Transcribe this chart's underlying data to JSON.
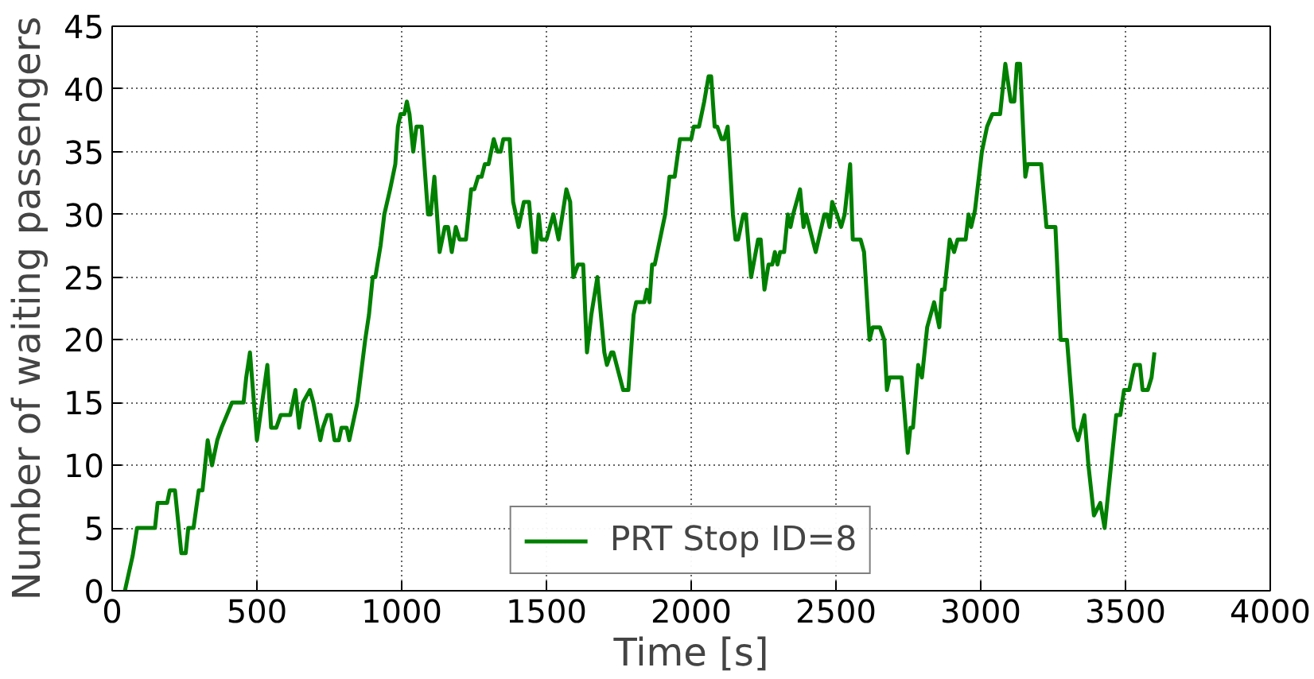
{
  "chart_data": {
    "type": "line",
    "xlabel": "Time [s]",
    "ylabel": "Number of waiting passengers",
    "xlim": [
      0,
      4000
    ],
    "ylim": [
      0,
      45
    ],
    "xticks": [
      0,
      500,
      1000,
      1500,
      2000,
      2500,
      3000,
      3500,
      4000
    ],
    "yticks": [
      0,
      5,
      10,
      15,
      20,
      25,
      30,
      35,
      40,
      45
    ],
    "grid": true,
    "legend": "bottom",
    "line_style": "solid",
    "marker": "none",
    "series": [
      {
        "name": "PRT Stop ID=8",
        "color": "#008000",
        "x": [
          44,
          71,
          86,
          148,
          157,
          190,
          199,
          217,
          239,
          254,
          263,
          281,
          299,
          312,
          330,
          345,
          363,
          378,
          396,
          414,
          454,
          463,
          476,
          500,
          518,
          536,
          549,
          567,
          582,
          615,
          633,
          646,
          659,
          683,
          695,
          719,
          728,
          743,
          755,
          768,
          783,
          792,
          810,
          819,
          847,
          874,
          887,
          900,
          909,
          927,
          940,
          960,
          978,
          987,
          996,
          1009,
          1018,
          1027,
          1040,
          1051,
          1069,
          1091,
          1100,
          1113,
          1131,
          1149,
          1160,
          1173,
          1187,
          1200,
          1222,
          1240,
          1251,
          1264,
          1276,
          1287,
          1300,
          1318,
          1331,
          1342,
          1351,
          1373,
          1385,
          1404,
          1422,
          1440,
          1455,
          1464,
          1473,
          1482,
          1500,
          1524,
          1542,
          1569,
          1582,
          1593,
          1609,
          1627,
          1640,
          1655,
          1676,
          1700,
          1709,
          1724,
          1731,
          1765,
          1783,
          1801,
          1810,
          1838,
          1847,
          1856,
          1865,
          1874,
          1910,
          1925,
          1943,
          1961,
          2000,
          2009,
          2027,
          2045,
          2060,
          2069,
          2081,
          2090,
          2105,
          2114,
          2126,
          2144,
          2153,
          2162,
          2180,
          2189,
          2207,
          2231,
          2240,
          2253,
          2267,
          2280,
          2289,
          2298,
          2307,
          2321,
          2334,
          2343,
          2352,
          2376,
          2388,
          2397,
          2430,
          2460,
          2469,
          2478,
          2487,
          2503,
          2518,
          2530,
          2549,
          2558,
          2585,
          2597,
          2616,
          2627,
          2652,
          2667,
          2676,
          2685,
          2727,
          2748,
          2757,
          2766,
          2784,
          2797,
          2815,
          2839,
          2857,
          2866,
          2875,
          2893,
          2908,
          2920,
          2948,
          2958,
          2967,
          2980,
          3004,
          3022,
          3040,
          3067,
          3085,
          3104,
          3116,
          3125,
          3136,
          3154,
          3162,
          3209,
          3227,
          3258,
          3276,
          3298,
          3322,
          3336,
          3358,
          3372,
          3391,
          3413,
          3428,
          3468,
          3482,
          3495,
          3513,
          3531,
          3550,
          3559,
          3577,
          3590,
          3600
        ],
        "values": [
          0,
          2.8,
          5,
          5,
          7,
          7,
          8,
          8,
          3,
          3,
          5,
          5,
          8,
          8,
          12,
          10,
          12,
          13,
          14,
          15,
          15,
          17,
          19,
          12,
          15,
          18,
          13,
          13,
          14,
          14,
          16,
          13,
          15,
          16,
          15,
          12,
          13,
          14,
          14,
          12,
          12,
          13,
          13,
          12,
          15,
          20,
          22,
          25,
          25,
          27.5,
          30,
          32,
          34,
          37,
          38,
          38,
          39,
          38,
          35,
          37,
          37,
          30,
          30,
          33,
          27,
          29,
          29,
          27,
          29,
          28,
          28,
          32,
          32,
          33,
          33,
          34,
          34,
          36,
          35,
          35,
          36,
          36,
          31,
          29,
          31,
          31,
          27,
          27,
          30,
          28,
          28,
          30,
          28,
          32,
          31,
          25,
          26,
          26,
          19,
          22,
          25,
          19,
          18,
          19,
          19,
          16,
          16,
          22,
          23,
          23,
          24,
          23,
          26,
          26,
          30,
          33,
          33,
          36,
          36,
          37,
          37,
          39,
          41,
          41,
          37,
          37,
          36,
          36,
          37,
          30,
          28,
          28,
          30,
          30,
          25,
          28,
          28,
          24,
          26,
          26,
          27,
          26,
          27,
          27,
          30,
          29,
          30,
          32,
          29,
          30,
          27,
          30,
          30,
          29,
          31,
          30,
          29,
          30,
          34,
          28,
          28,
          27,
          20,
          21,
          21,
          20,
          16,
          17,
          17,
          11,
          13,
          13,
          18,
          17,
          21,
          23,
          21,
          24,
          24,
          28,
          27,
          28,
          28,
          30,
          29,
          30.3,
          35,
          37,
          38,
          38,
          42,
          39,
          39,
          42,
          42,
          33,
          34,
          34,
          29,
          29,
          20,
          20,
          13,
          12,
          14,
          10,
          6,
          7,
          5,
          14,
          14,
          16,
          16,
          18,
          18,
          16,
          16,
          17,
          19
        ]
      }
    ]
  }
}
